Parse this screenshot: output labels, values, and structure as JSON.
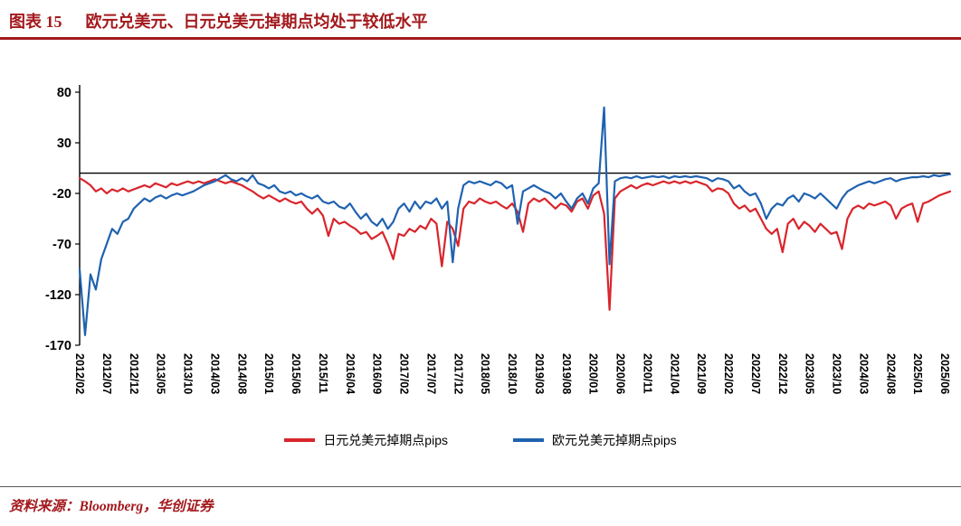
{
  "header": {
    "figure_no": "图表 15",
    "caption": "欧元兑美元、日元兑美元掉期点均处于较低水平"
  },
  "footer": {
    "source": "资料来源：Bloomberg，华创证券"
  },
  "colors": {
    "accent": "#A3191D",
    "series_red": "#D9252C",
    "series_blue": "#1F62B0",
    "axis": "#000000"
  },
  "chart_data": {
    "type": "line",
    "title": "",
    "xlabel": "",
    "ylabel": "",
    "ylim": [
      -170,
      80
    ],
    "yticks": [
      80,
      30,
      -20,
      -70,
      -120,
      -170
    ],
    "grid": false,
    "zero_line": true,
    "legend_position": "bottom",
    "x_unit": "month",
    "x_tick_every": 5,
    "xticklabels": [
      "2012/02",
      "2012/07",
      "2012/12",
      "2013/05",
      "2013/10",
      "2014/03",
      "2014/08",
      "2015/01",
      "2015/06",
      "2015/11",
      "2016/04",
      "2016/09",
      "2017/02",
      "2017/07",
      "2017/12",
      "2018/05",
      "2018/10",
      "2019/03",
      "2019/08",
      "2020/01",
      "2020/06",
      "2020/11",
      "2021/04",
      "2021/09",
      "2022/02",
      "2022/07",
      "2022/12",
      "2023/05",
      "2023/10",
      "2024/03",
      "2024/08",
      "2025/01",
      "2025/06"
    ],
    "series": [
      {
        "name": "日元兑美元掉期点pips",
        "color": "#D9252C",
        "values": [
          -5,
          -8,
          -12,
          -18,
          -15,
          -20,
          -16,
          -18,
          -15,
          -18,
          -16,
          -14,
          -12,
          -14,
          -10,
          -12,
          -14,
          -10,
          -12,
          -10,
          -8,
          -10,
          -8,
          -10,
          -8,
          -6,
          -8,
          -10,
          -8,
          -10,
          -12,
          -15,
          -18,
          -22,
          -25,
          -22,
          -25,
          -28,
          -25,
          -28,
          -30,
          -28,
          -35,
          -40,
          -35,
          -42,
          -62,
          -45,
          -50,
          -48,
          -52,
          -55,
          -60,
          -58,
          -65,
          -62,
          -58,
          -70,
          -85,
          -60,
          -62,
          -55,
          -58,
          -52,
          -55,
          -45,
          -50,
          -92,
          -48,
          -55,
          -72,
          -35,
          -28,
          -30,
          -25,
          -28,
          -30,
          -28,
          -32,
          -35,
          -30,
          -38,
          -58,
          -30,
          -25,
          -28,
          -25,
          -30,
          -35,
          -30,
          -32,
          -38,
          -28,
          -25,
          -35,
          -22,
          -18,
          -40,
          -135,
          -25,
          -18,
          -15,
          -12,
          -15,
          -12,
          -10,
          -12,
          -10,
          -8,
          -10,
          -8,
          -10,
          -8,
          -10,
          -8,
          -10,
          -12,
          -18,
          -15,
          -16,
          -20,
          -30,
          -35,
          -32,
          -38,
          -35,
          -45,
          -55,
          -60,
          -55,
          -78,
          -50,
          -45,
          -55,
          -48,
          -52,
          -58,
          -50,
          -55,
          -60,
          -58,
          -75,
          -45,
          -35,
          -32,
          -35,
          -30,
          -32,
          -30,
          -28,
          -32,
          -45,
          -35,
          -32,
          -30,
          -48,
          -30,
          -28,
          -25,
          -22,
          -20,
          -18
        ]
      },
      {
        "name": "欧元兑美元掉期点pips",
        "color": "#1F62B0",
        "values": [
          -95,
          -160,
          -100,
          -115,
          -85,
          -70,
          -55,
          -60,
          -48,
          -45,
          -35,
          -30,
          -25,
          -28,
          -24,
          -22,
          -25,
          -22,
          -20,
          -22,
          -20,
          -18,
          -15,
          -12,
          -10,
          -8,
          -5,
          -2,
          -6,
          -8,
          -5,
          -8,
          -2,
          -10,
          -12,
          -15,
          -12,
          -18,
          -20,
          -18,
          -22,
          -20,
          -23,
          -25,
          -22,
          -28,
          -30,
          -28,
          -33,
          -35,
          -30,
          -38,
          -45,
          -40,
          -48,
          -52,
          -45,
          -55,
          -48,
          -35,
          -30,
          -38,
          -28,
          -35,
          -28,
          -30,
          -25,
          -35,
          -28,
          -88,
          -35,
          -12,
          -8,
          -10,
          -8,
          -10,
          -12,
          -8,
          -10,
          -15,
          -12,
          -50,
          -18,
          -15,
          -12,
          -15,
          -18,
          -20,
          -25,
          -20,
          -28,
          -35,
          -25,
          -20,
          -30,
          -15,
          -10,
          65,
          -90,
          -8,
          -5,
          -4,
          -5,
          -3,
          -5,
          -4,
          -3,
          -4,
          -3,
          -5,
          -3,
          -4,
          -3,
          -4,
          -3,
          -4,
          -5,
          -8,
          -5,
          -6,
          -8,
          -15,
          -12,
          -18,
          -22,
          -20,
          -30,
          -45,
          -35,
          -30,
          -32,
          -25,
          -22,
          -28,
          -20,
          -22,
          -25,
          -20,
          -25,
          -30,
          -35,
          -25,
          -18,
          -15,
          -12,
          -10,
          -8,
          -10,
          -8,
          -6,
          -5,
          -8,
          -6,
          -5,
          -4,
          -4,
          -3,
          -4,
          -2,
          -3,
          -2,
          -1
        ]
      }
    ]
  }
}
